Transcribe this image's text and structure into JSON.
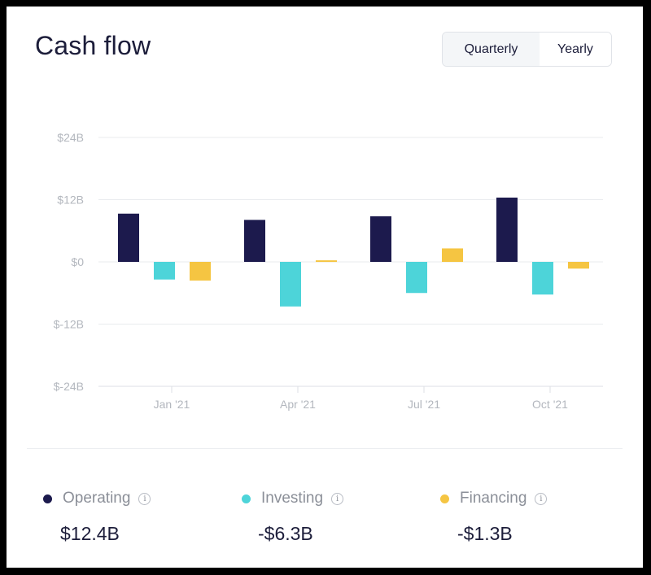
{
  "header": {
    "title": "Cash flow",
    "toggle": {
      "quarterly_label": "Quarterly",
      "yearly_label": "Yearly",
      "selected": "Quarterly"
    }
  },
  "colors": {
    "operating": "#1c1a4d",
    "investing": "#4dd4d9",
    "financing": "#f5c542",
    "grid": "#e9ebee",
    "axis_text": "#b3b7be"
  },
  "chart_data": {
    "type": "bar",
    "categories": [
      "Jan '21",
      "Apr '21",
      "Jul '21",
      "Oct '21"
    ],
    "series": [
      {
        "name": "Operating",
        "values": [
          9.3,
          8.1,
          8.8,
          12.4
        ]
      },
      {
        "name": "Investing",
        "values": [
          -3.4,
          -8.6,
          -6.0,
          -6.3
        ]
      },
      {
        "name": "Financing",
        "values": [
          -3.6,
          0.3,
          2.6,
          -1.3
        ]
      }
    ],
    "yticks": [
      "$24B",
      "$12B",
      "$0",
      "$-12B",
      "$-24B"
    ],
    "ytick_values": [
      24,
      12,
      0,
      -12,
      -24
    ],
    "ylim": [
      -24,
      24
    ],
    "grid": true
  },
  "legend": [
    {
      "label": "Operating",
      "value": "$12.4B",
      "info_icon": "info-icon"
    },
    {
      "label": "Investing",
      "value": "-$6.3B",
      "info_icon": "info-icon"
    },
    {
      "label": "Financing",
      "value": "-$1.3B",
      "info_icon": "info-icon"
    }
  ]
}
